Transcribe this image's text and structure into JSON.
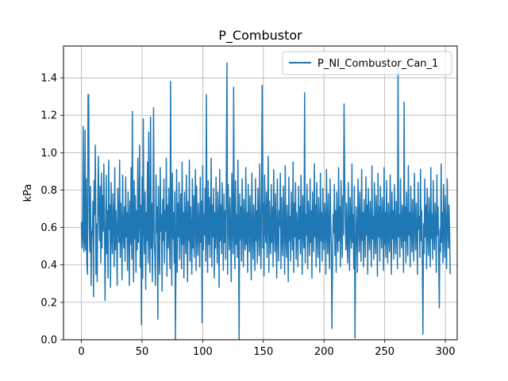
{
  "chart_data": {
    "type": "line",
    "title": "P_Combustor",
    "xlabel": "",
    "ylabel": "kPa",
    "xlim": [
      -14.75,
      309.75
    ],
    "ylim": [
      0.0,
      1.57
    ],
    "xticks": [
      0,
      50,
      100,
      150,
      200,
      250,
      300
    ],
    "yticks": [
      0.0,
      0.2,
      0.4,
      0.6,
      0.8,
      1.0,
      1.2,
      1.4
    ],
    "x_tick_labels": [
      "0",
      "50",
      "100",
      "150",
      "200",
      "250",
      "300"
    ],
    "y_tick_labels": [
      "0.0",
      "0.2",
      "0.4",
      "0.6",
      "0.8",
      "1.0",
      "1.2",
      "1.4"
    ],
    "grid": true,
    "legend_position": "upper right",
    "series": [
      {
        "name": "P_NI_Combustor_Can_1",
        "color": "#1f77b4",
        "x_start": 0,
        "x_step": 0.5,
        "values": [
          0.63,
          0.49,
          0.55,
          1.14,
          0.47,
          0.52,
          1.12,
          0.48,
          0.86,
          0.41,
          0.35,
          1.31,
          1.31,
          0.61,
          0.47,
          0.82,
          0.29,
          0.58,
          0.56,
          0.74,
          0.23,
          0.85,
          0.67,
          1.04,
          0.35,
          0.62,
          0.31,
          0.72,
          0.98,
          0.67,
          0.53,
          0.82,
          0.41,
          0.89,
          0.49,
          0.77,
          0.58,
          0.94,
          0.63,
          0.21,
          0.55,
          0.88,
          0.46,
          0.69,
          0.33,
          0.96,
          0.59,
          0.72,
          0.28,
          0.84,
          0.57,
          0.46,
          0.78,
          0.64,
          0.39,
          0.92,
          0.48,
          0.69,
          0.56,
          0.29,
          0.81,
          0.63,
          0.52,
          0.96,
          0.44,
          0.73,
          0.61,
          0.32,
          0.88,
          0.57,
          0.49,
          0.71,
          0.42,
          0.87,
          0.55,
          0.68,
          0.37,
          0.79,
          0.62,
          0.29,
          0.74,
          0.51,
          0.92,
          0.43,
          0.66,
          0.58,
          0.31,
          0.85,
          0.54,
          0.77,
          0.36,
          0.69,
          0.48,
          0.97,
          0.52,
          0.63,
          1.04,
          0.39,
          0.72,
          0.55,
          0.87,
          0.33,
          1.18,
          0.61,
          0.46,
          0.79,
          0.27,
          0.68,
          0.53,
          0.95,
          0.41,
          1.11,
          0.58,
          0.36,
          0.82,
          0.49,
          0.73,
          0.31,
          0.64,
          1.24,
          0.52,
          0.46,
          0.29,
          0.88,
          0.57,
          0.71,
          0.31,
          0.82,
          0.48,
          0.35,
          0.92,
          0.58,
          0.67,
          0.26,
          0.75,
          0.53,
          0.86,
          0.41,
          0.69,
          0.58,
          0.97,
          0.34,
          0.72,
          0.49,
          0.81,
          0.56,
          0.38,
          0.77,
          0.65,
          0.29,
          0.89,
          0.54,
          0.68,
          0.41,
          0.79,
          0.62,
          0.47,
          0.91,
          0.36,
          0.73,
          0.55,
          0.84,
          0.43,
          0.66,
          0.78,
          0.38,
          0.95,
          0.51,
          0.68,
          0.33,
          0.79,
          0.57,
          0.46,
          0.88,
          0.62,
          0.31,
          0.74,
          0.53,
          0.96,
          0.42,
          0.71,
          0.58,
          0.35,
          0.86,
          0.49,
          0.77,
          0.44,
          0.67,
          0.91,
          0.37,
          0.82,
          0.56,
          0.45,
          0.73,
          0.61,
          0.39,
          0.87,
          0.52,
          0.74,
          0.29,
          0.93,
          0.48,
          0.67,
          0.56,
          0.81,
          0.42,
          0.69,
          0.58,
          0.36,
          0.85,
          0.51,
          0.76,
          0.44,
          0.63,
          0.97,
          0.39,
          0.72,
          0.55,
          0.81,
          0.33,
          0.68,
          0.49,
          0.87,
          0.59,
          0.41,
          0.79,
          0.64,
          0.28,
          0.91,
          0.53,
          0.72,
          0.46,
          0.84,
          0.61,
          0.37,
          0.78,
          0.52,
          0.69,
          0.43,
          0.92,
          0.57,
          0.35,
          0.83,
          0.64,
          0.48,
          0.76,
          0.55,
          0.31,
          0.89,
          0.62,
          0.46,
          0.74,
          0.58,
          0.38,
          0.85,
          0.51,
          0.67,
          0.44,
          0.96,
          0.59,
          0.33,
          0.78,
          0.54,
          0.71,
          0.42,
          0.86,
          0.63,
          0.39,
          0.75,
          0.57,
          0.48,
          0.92,
          0.51,
          0.68,
          0.36,
          0.83,
          0.61,
          0.47,
          0.77,
          0.55,
          0.32,
          0.89,
          0.64,
          0.43,
          0.72,
          0.58,
          0.37,
          0.86,
          0.53,
          0.69,
          0.41,
          0.81,
          0.62,
          0.45,
          0.94,
          0.56,
          0.38,
          0.77,
          0.59,
          0.49,
          0.73,
          0.34,
          0.88,
          0.61,
          0.52,
          0.79,
          0.44,
          0.67,
          0.98,
          0.36,
          0.74,
          0.57,
          0.46,
          0.83,
          0.52,
          0.71,
          0.39,
          0.91,
          0.62,
          0.47,
          0.78,
          0.55,
          0.33,
          0.86,
          0.59,
          0.42,
          0.69,
          0.61,
          0.89,
          0.38,
          0.76,
          0.54,
          0.45,
          0.82,
          0.63,
          0.35,
          0.93,
          0.57,
          0.44,
          0.72,
          0.59,
          0.31,
          0.87,
          0.53,
          0.66,
          0.42,
          0.79,
          0.61,
          0.48,
          0.95,
          0.36,
          0.73,
          0.55,
          0.84,
          0.43,
          0.68,
          0.59,
          0.39,
          0.82,
          0.54,
          0.71,
          0.46,
          0.88,
          0.62,
          0.35,
          0.77,
          0.58,
          0.49,
          0.92,
          0.41,
          0.67,
          0.56,
          0.83,
          0.38,
          0.74,
          0.61,
          0.45,
          0.86,
          0.52,
          0.69,
          0.33,
          0.79,
          0.63,
          0.47,
          0.94,
          0.55,
          0.72,
          0.39,
          0.84,
          0.58,
          0.44,
          0.76,
          0.61,
          0.36,
          0.89,
          0.53,
          0.68,
          0.42,
          0.81,
          0.57,
          0.48,
          0.73,
          0.64,
          0.35,
          0.91,
          0.59,
          0.46,
          0.78,
          0.55,
          0.38,
          0.86,
          0.62,
          0.49,
          0.74,
          0.41,
          0.67,
          0.57,
          0.83,
          0.45,
          0.69,
          0.36,
          0.79,
          0.58,
          0.47,
          0.92,
          0.53,
          0.71,
          0.39,
          0.85,
          0.61,
          0.44,
          0.77,
          0.56,
          0.33,
          0.88,
          0.62,
          0.48,
          0.73,
          0.54,
          0.41,
          0.84,
          0.59,
          0.37,
          0.76,
          0.63,
          0.49,
          0.94,
          0.52,
          0.67,
          0.38,
          0.82,
          0.58,
          0.45,
          0.71,
          0.55,
          0.36,
          0.86,
          0.64,
          0.47,
          0.79,
          0.57,
          0.42,
          0.91,
          0.53,
          0.68,
          0.39,
          0.75,
          0.61,
          0.44,
          0.87,
          0.56,
          0.72,
          0.35,
          0.81,
          0.59,
          0.48,
          0.74,
          0.62,
          0.39,
          0.93,
          0.54,
          0.66,
          0.43,
          0.84,
          0.57,
          0.46,
          0.77,
          0.61,
          0.34,
          0.89,
          0.55,
          0.71,
          0.42,
          0.82,
          0.58,
          0.49,
          0.76,
          0.63,
          0.37,
          0.92,
          0.51,
          0.68,
          0.44,
          0.85,
          0.59,
          0.41,
          0.73,
          0.56,
          0.47,
          0.88,
          0.62,
          0.35,
          0.79,
          0.54,
          0.69,
          0.43,
          0.83,
          0.57,
          0.46,
          0.74,
          0.61,
          0.38,
          0.91,
          0.55,
          0.67,
          0.44,
          0.86,
          0.58,
          0.49,
          0.72,
          0.63,
          0.36,
          0.87,
          0.53,
          0.71,
          0.41,
          0.79,
          0.59,
          0.45,
          0.93,
          0.56,
          0.68,
          0.39,
          0.82,
          0.61,
          0.47,
          0.75,
          0.54,
          0.42,
          0.89,
          0.62,
          0.48,
          0.73,
          0.57,
          0.35,
          0.84,
          0.59,
          0.66,
          0.44,
          0.91,
          0.53,
          0.69,
          0.41,
          0.78,
          0.62,
          0.46,
          0.86,
          0.55,
          0.72,
          0.38,
          0.81,
          0.58,
          0.45,
          0.76,
          0.61,
          0.39,
          0.92,
          0.54,
          0.67,
          0.43,
          0.85,
          0.57,
          0.48,
          0.73,
          0.63,
          0.36,
          0.88,
          0.56,
          0.71,
          0.42,
          0.79,
          0.59,
          0.47,
          0.94,
          0.52,
          0.68,
          0.41,
          0.83,
          0.61,
          0.44,
          0.77,
          0.55,
          0.38,
          0.86,
          0.62,
          0.49,
          0.72,
          0.57,
          0.35
        ],
        "highlights": [
          {
            "x": 42,
            "value": 1.22
          },
          {
            "x": 49.5,
            "value": 0.08
          },
          {
            "x": 57,
            "value": 1.19
          },
          {
            "x": 63,
            "value": 0.11
          },
          {
            "x": 73.5,
            "value": 1.38
          },
          {
            "x": 77.5,
            "value": 0.0
          },
          {
            "x": 99.5,
            "value": 0.09
          },
          {
            "x": 103,
            "value": 1.31
          },
          {
            "x": 120,
            "value": 1.48
          },
          {
            "x": 125.5,
            "value": 1.35
          },
          {
            "x": 130,
            "value": 0.0
          },
          {
            "x": 149,
            "value": 1.36
          },
          {
            "x": 184,
            "value": 1.32
          },
          {
            "x": 206.5,
            "value": 0.06
          },
          {
            "x": 216.5,
            "value": 1.26
          },
          {
            "x": 225.5,
            "value": 0.01
          },
          {
            "x": 261,
            "value": 1.47
          },
          {
            "x": 266,
            "value": 1.27
          },
          {
            "x": 281.5,
            "value": 0.03
          },
          {
            "x": 295,
            "value": 0.17
          }
        ]
      }
    ]
  }
}
